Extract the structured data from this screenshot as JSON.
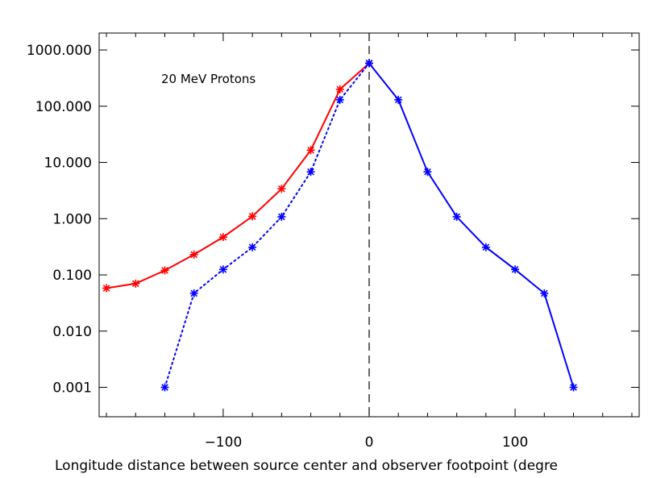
{
  "chart_data": {
    "type": "line",
    "title": "",
    "annotation": "20 MeV Protons",
    "xlabel": "Longitude distance between source center and observer footpoint (degre",
    "ylabel": "",
    "xlim": [
      -185,
      185
    ],
    "ylim": [
      0.0003,
      2000
    ],
    "y_scale": "log",
    "x_ticks": [
      -100,
      0,
      100
    ],
    "x_tick_labels": [
      "−100",
      "0",
      "100"
    ],
    "y_ticks": [
      0.001,
      0.01,
      0.1,
      1,
      10,
      100,
      1000
    ],
    "y_tick_labels": [
      "0.001",
      "0.010",
      "0.100",
      "1.000",
      "10.000",
      "100.000",
      "1000.000"
    ],
    "grid": false,
    "vline": {
      "x": 0,
      "style": "dashed",
      "color": "#000000"
    },
    "series": [
      {
        "color": "#ff0000",
        "line_style": "solid",
        "marker": "asterisk",
        "x": [
          -180,
          -160,
          -140,
          -120,
          -100,
          -80,
          -60,
          -40,
          -20,
          0
        ],
        "y": [
          0.058,
          0.07,
          0.12,
          0.23,
          0.47,
          1.1,
          3.4,
          16.5,
          200,
          580
        ]
      },
      {
        "color": "#0000ff",
        "line_style": "dotted",
        "marker": "asterisk",
        "x": [
          -140,
          -120,
          -100,
          -80,
          -60,
          -40,
          -20,
          0
        ],
        "y": [
          0.001,
          0.047,
          0.125,
          0.31,
          1.08,
          6.8,
          130,
          580
        ]
      },
      {
        "color": "#0000ff",
        "line_style": "solid",
        "marker": "asterisk",
        "x": [
          0,
          20,
          40,
          60,
          80,
          100,
          120,
          140
        ],
        "y": [
          580,
          130,
          6.8,
          1.08,
          0.31,
          0.125,
          0.047,
          0.001
        ]
      }
    ]
  }
}
